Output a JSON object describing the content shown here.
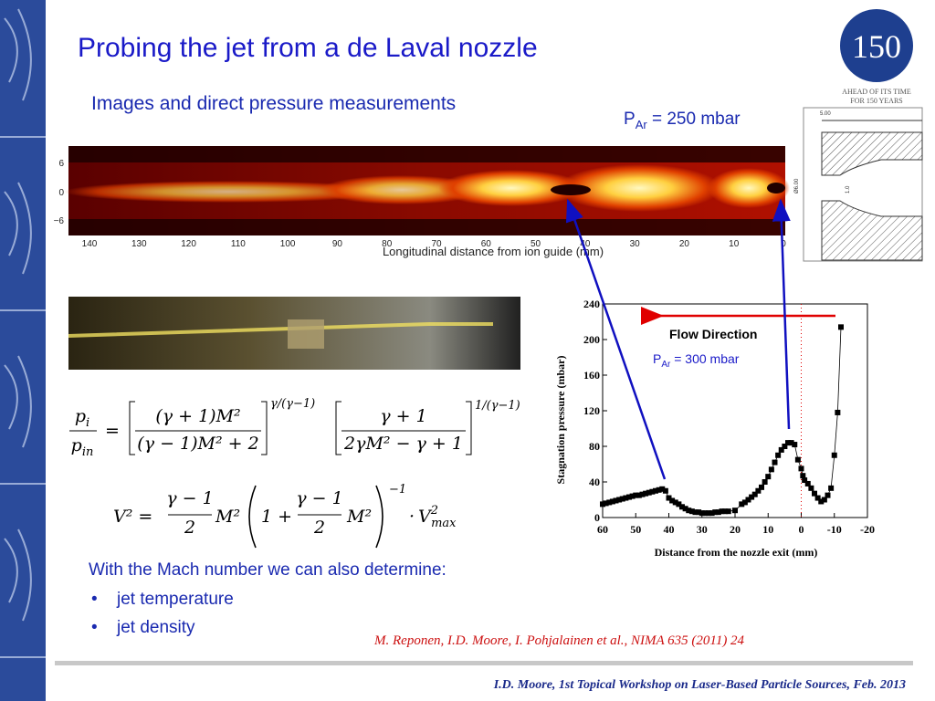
{
  "header": {
    "title": "Probing the jet from a de Laval nozzle",
    "subtitle": "Images and direct pressure measurements",
    "pressure_label": {
      "base": "P",
      "sub": "Ar",
      "rest": " =  250 mbar"
    }
  },
  "logo": {
    "number": "150",
    "line1": "AHEAD OF ITS TIME",
    "line2": "FOR 150 YEARS"
  },
  "nozzle": {
    "labels": [
      "5.00",
      "Ø6.00",
      "1.0"
    ]
  },
  "jet_image": {
    "yticks": [
      "6",
      "0",
      "−6"
    ],
    "xticks": [
      "140",
      "130",
      "120",
      "110",
      "100",
      "90",
      "80",
      "70",
      "60",
      "50",
      "40",
      "30",
      "20",
      "10",
      "0"
    ],
    "xlabel": "Longitudinal distance from ion guide (mm)"
  },
  "equations": {
    "eq1": {
      "lhs_num": {
        "base": "p",
        "sub": "i"
      },
      "lhs_den": {
        "base": "p",
        "sub": "in"
      },
      "equals": "=",
      "f1_num": "(γ + 1)M²",
      "f1_den": "(γ − 1)M² + 2",
      "exp1": "γ/(γ−1)",
      "f2_num": "γ + 1",
      "f2_den": "2γM² − γ + 1",
      "exp2": "1/(γ−1)"
    },
    "eq2": {
      "lhs": "V² =",
      "f1_num": "γ − 1",
      "f1_den": "2",
      "m1": "M²",
      "pre": "1 +",
      "f2_num": "γ − 1",
      "f2_den": "2",
      "m2": "M²",
      "exp": "−1",
      "tail": {
        "dot": "·",
        "base": "V",
        "sup": "2",
        "sub": "max"
      }
    }
  },
  "text": {
    "intro": "With the Mach number we can also determine:",
    "bullets": [
      "jet temperature",
      "jet density"
    ],
    "citation": "M. Reponen, I.D. Moore, I. Pohjalainen et al., NIMA 635 (2011) 24",
    "footer": "I.D. Moore, 1st Topical Workshop on Laser-Based Particle Sources, Feb. 2013"
  },
  "chart_data": {
    "type": "scatter",
    "xlabel": "Distance from the nozzle exit (mm)",
    "ylabel": "Stagnation pressure (mbar)",
    "annotation": "Flow Direction",
    "pressure_label": {
      "base": "P",
      "sub": "Ar",
      "rest": " =  300 mbar"
    },
    "x": [
      60,
      59,
      58,
      57,
      56,
      55,
      54,
      53,
      52,
      51,
      50,
      49,
      48,
      47,
      46,
      45,
      44,
      43,
      42,
      41,
      40,
      39,
      38,
      37,
      36,
      35,
      34,
      33,
      32,
      31,
      30,
      29,
      28,
      27,
      26,
      25,
      24,
      23,
      22,
      20,
      18,
      17,
      16,
      15,
      14,
      13,
      12,
      11,
      10,
      9,
      8,
      7,
      6,
      5,
      4,
      3,
      2,
      1,
      0,
      -0.5,
      -1,
      -2,
      -3,
      -4,
      -5,
      -6,
      -7,
      -8,
      -9,
      -10,
      -11,
      -12
    ],
    "values": [
      15,
      16,
      17,
      18,
      19,
      20,
      21,
      22,
      23,
      24,
      25,
      25,
      26,
      27,
      28,
      29,
      30,
      31,
      32,
      30,
      22,
      19,
      17,
      15,
      12,
      10,
      8,
      7,
      6,
      6,
      5,
      5,
      5,
      5,
      6,
      6,
      7,
      7,
      7,
      8,
      15,
      17,
      20,
      23,
      26,
      30,
      34,
      40,
      46,
      54,
      62,
      70,
      76,
      80,
      84,
      84,
      82,
      65,
      55,
      47,
      42,
      38,
      33,
      27,
      22,
      18,
      20,
      25,
      33,
      70,
      118,
      214
    ],
    "color": "#000000",
    "xlim": [
      60,
      -20
    ],
    "ylim": [
      0,
      240
    ],
    "xticks": [
      60,
      50,
      40,
      30,
      20,
      10,
      0,
      -10,
      -20
    ],
    "yticks": [
      0,
      40,
      80,
      120,
      160,
      200,
      240
    ],
    "vline": 0
  }
}
